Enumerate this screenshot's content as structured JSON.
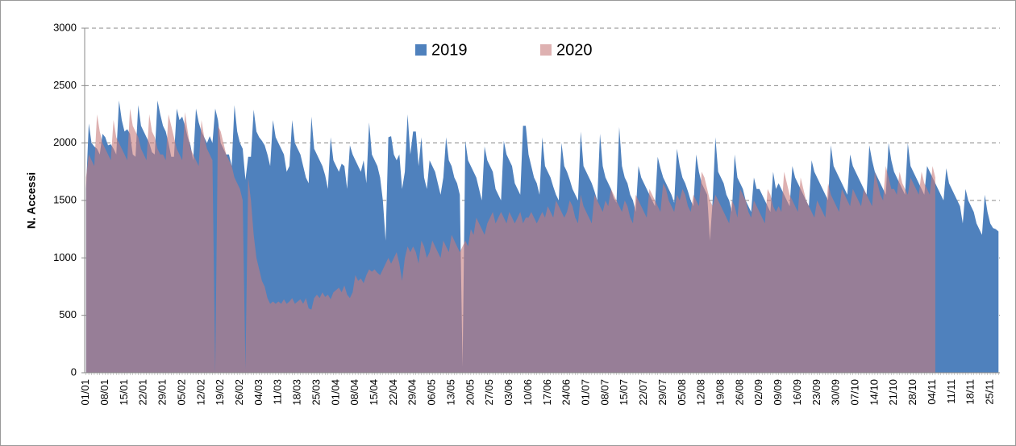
{
  "chart_data": {
    "type": "area",
    "y_label": "N. Accessi",
    "ylim": [
      0,
      3000
    ],
    "yticks": [
      0,
      500,
      1000,
      1500,
      2000,
      2500,
      3000
    ],
    "grid": true,
    "legend": "top",
    "categories": [
      "01/01",
      null,
      null,
      null,
      null,
      null,
      null,
      "08/01",
      null,
      null,
      null,
      null,
      null,
      null,
      "15/01",
      null,
      null,
      null,
      null,
      null,
      null,
      "22/01",
      null,
      null,
      null,
      null,
      null,
      null,
      "29/01",
      null,
      null,
      null,
      null,
      null,
      null,
      "05/02",
      null,
      null,
      null,
      null,
      null,
      null,
      "12/02",
      null,
      null,
      null,
      null,
      null,
      null,
      "19/02",
      null,
      null,
      null,
      null,
      null,
      null,
      "26/02",
      null,
      null,
      null,
      null,
      null,
      null,
      "04/03",
      null,
      null,
      null,
      null,
      null,
      null,
      "11/03",
      null,
      null,
      null,
      null,
      null,
      null,
      "18/03",
      null,
      null,
      null,
      null,
      null,
      null,
      "25/03",
      null,
      null,
      null,
      null,
      null,
      null,
      "01/04",
      null,
      null,
      null,
      null,
      null,
      null,
      "08/04",
      null,
      null,
      null,
      null,
      null,
      null,
      "15/04",
      null,
      null,
      null,
      null,
      null,
      null,
      "22/04",
      null,
      null,
      null,
      null,
      null,
      null,
      "29/04",
      null,
      null,
      null,
      null,
      null,
      null,
      "06/05",
      null,
      null,
      null,
      null,
      null,
      null,
      "13/05",
      null,
      null,
      null,
      null,
      null,
      null,
      "20/05",
      null,
      null,
      null,
      null,
      null,
      null,
      "27/05",
      null,
      null,
      null,
      null,
      null,
      null,
      "03/06",
      null,
      null,
      null,
      null,
      null,
      null,
      "10/06",
      null,
      null,
      null,
      null,
      null,
      null,
      "17/06",
      null,
      null,
      null,
      null,
      null,
      null,
      "24/06",
      null,
      null,
      null,
      null,
      null,
      null,
      "01/07",
      null,
      null,
      null,
      null,
      null,
      null,
      "08/07",
      null,
      null,
      null,
      null,
      null,
      null,
      "15/07",
      null,
      null,
      null,
      null,
      null,
      null,
      "22/07",
      null,
      null,
      null,
      null,
      null,
      null,
      "29/07",
      null,
      null,
      null,
      null,
      null,
      null,
      "05/08",
      null,
      null,
      null,
      null,
      null,
      null,
      "12/08",
      null,
      null,
      null,
      null,
      null,
      null,
      "19/08",
      null,
      null,
      null,
      null,
      null,
      null,
      "26/08",
      null,
      null,
      null,
      null,
      null,
      null,
      "02/09",
      null,
      null,
      null,
      null,
      null,
      null,
      "09/09",
      null,
      null,
      null,
      null,
      null,
      null,
      "16/09",
      null,
      null,
      null,
      null,
      null,
      null,
      "23/09",
      null,
      null,
      null,
      null,
      null,
      null,
      "30/09",
      null,
      null,
      null,
      null,
      null,
      null,
      "07/10",
      null,
      null,
      null,
      null,
      null,
      null,
      "14/10",
      null,
      null,
      null,
      null,
      null,
      null,
      "21/10",
      null,
      null,
      null,
      null,
      null,
      null,
      "28/10",
      null,
      null,
      null,
      null,
      null,
      null,
      "04/11",
      null,
      null,
      null,
      null,
      null,
      null,
      "11/11",
      null,
      null,
      null,
      null,
      null,
      null,
      "18/11",
      null,
      null,
      null,
      null,
      null,
      null,
      "25/11",
      null,
      null,
      null
    ],
    "series": [
      {
        "name": "2019",
        "color": "#4f81bd",
        "values": [
          1600,
          2170,
          2000,
          1970,
          1950,
          1900,
          2080,
          2050,
          1980,
          1990,
          1950,
          1900,
          2370,
          2200,
          2100,
          2120,
          2080,
          1900,
          1880,
          2330,
          2150,
          2100,
          2050,
          2000,
          1920,
          1900,
          2370,
          2250,
          2150,
          2100,
          2000,
          1880,
          1880,
          2300,
          2200,
          2230,
          2150,
          2050,
          1980,
          1850,
          2300,
          2180,
          2100,
          2050,
          2000,
          2060,
          2000,
          2300,
          2200,
          2000,
          1950,
          1900,
          1900,
          1800,
          2330,
          2100,
          2000,
          1950,
          1680,
          1880,
          1880,
          2290,
          2100,
          2050,
          2020,
          1980,
          1900,
          1800,
          2200,
          2050,
          2000,
          1950,
          1900,
          1750,
          1800,
          2200,
          2000,
          1950,
          1900,
          1800,
          1700,
          1650,
          2230,
          1950,
          1900,
          1850,
          1800,
          1720,
          1600,
          2050,
          1850,
          1800,
          1750,
          1820,
          1800,
          1600,
          1980,
          1900,
          1850,
          1800,
          1750,
          1850,
          1650,
          2180,
          1900,
          1850,
          1800,
          1700,
          1500,
          1150,
          2050,
          2060,
          1900,
          1850,
          1900,
          1600,
          1750,
          2250,
          1900,
          2100,
          2100,
          1800,
          2050,
          1700,
          1600,
          1850,
          1800,
          1750,
          1650,
          1550,
          1700,
          2050,
          1850,
          1800,
          1700,
          1650,
          1550,
          50,
          2020,
          1850,
          1800,
          1750,
          1700,
          1600,
          1500,
          1970,
          1850,
          1800,
          1750,
          1600,
          1550,
          1500,
          2020,
          1900,
          1850,
          1800,
          1650,
          1600,
          1550,
          2150,
          2150,
          1900,
          1800,
          1700,
          1650,
          1550,
          2050,
          1800,
          1750,
          1700,
          1620,
          1550,
          1500,
          2000,
          1800,
          1750,
          1680,
          1600,
          1550,
          1500,
          2100,
          1800,
          1750,
          1700,
          1650,
          1580,
          1500,
          2080,
          1800,
          1700,
          1650,
          1600,
          1520,
          1480,
          2140,
          1800,
          1700,
          1650,
          1550,
          1500,
          1400,
          1800,
          1700,
          1650,
          1600,
          1550,
          1500,
          1450,
          1880,
          1780,
          1700,
          1650,
          1600,
          1550,
          1480,
          1950,
          1800,
          1700,
          1650,
          1580,
          1500,
          1450,
          1900,
          1750,
          1650,
          1600,
          1550,
          1150,
          1500,
          2050,
          1750,
          1700,
          1650,
          1550,
          1500,
          1400,
          1900,
          1700,
          1650,
          1600,
          1500,
          1450,
          1400,
          1700,
          1600,
          1600,
          1550,
          1500,
          1450,
          1400,
          1750,
          1600,
          1650,
          1600,
          1550,
          1500,
          1450,
          1800,
          1700,
          1650,
          1600,
          1550,
          1500,
          1450,
          1850,
          1750,
          1700,
          1650,
          1600,
          1550,
          1500,
          1980,
          1800,
          1750,
          1700,
          1650,
          1600,
          1550,
          1900,
          1800,
          1750,
          1700,
          1650,
          1600,
          1550,
          1980,
          1850,
          1750,
          1700,
          1650,
          1600,
          1550,
          2000,
          1850,
          1750,
          1700,
          1650,
          1600,
          1550,
          2000,
          1800,
          1750,
          1700,
          1650,
          1600,
          1550,
          1800,
          1750,
          1700,
          1650,
          1600,
          1550,
          1500,
          1780,
          1650,
          1600,
          1550,
          1500,
          1450,
          1300,
          1600,
          1500,
          1450,
          1400,
          1300,
          1250,
          1200,
          1550,
          1400,
          1300,
          1260,
          1250,
          1230
        ]
      },
      {
        "name": "2020",
        "color": "#c87d7d",
        "values": [
          1700,
          1900,
          1850,
          1800,
          2250,
          2100,
          2000,
          1950,
          1900,
          1850,
          2200,
          2050,
          2000,
          1950,
          1900,
          1850,
          2300,
          2150,
          2100,
          2050,
          1950,
          1900,
          1850,
          2250,
          2100,
          2050,
          1950,
          1900,
          1900,
          1850,
          2250,
          2150,
          2050,
          1950,
          1900,
          1850,
          2270,
          2100,
          1950,
          1900,
          1850,
          1800,
          2200,
          2050,
          1950,
          1900,
          1850,
          0,
          2150,
          2100,
          2000,
          1900,
          1850,
          1800,
          1700,
          1650,
          1600,
          1500,
          30,
          1700,
          1500,
          1200,
          1000,
          900,
          800,
          750,
          650,
          600,
          620,
          600,
          620,
          600,
          640,
          600,
          620,
          650,
          600,
          620,
          640,
          600,
          650,
          560,
          550,
          650,
          680,
          650,
          700,
          660,
          680,
          640,
          700,
          720,
          740,
          700,
          760,
          680,
          650,
          700,
          850,
          800,
          820,
          780,
          850,
          900,
          880,
          900,
          870,
          850,
          900,
          950,
          1000,
          950,
          1000,
          1050,
          950,
          800,
          1000,
          1100,
          1050,
          1100,
          1050,
          950,
          1150,
          1100,
          1000,
          1050,
          1150,
          1100,
          1050,
          1000,
          1150,
          1100,
          1050,
          1200,
          1150,
          1100,
          1050,
          1100,
          1150,
          1100,
          1250,
          1200,
          1350,
          1300,
          1250,
          1200,
          1300,
          1350,
          1400,
          1300,
          1350,
          1400,
          1350,
          1300,
          1400,
          1350,
          1300,
          1350,
          1400,
          1300,
          1350,
          1350,
          1400,
          1350,
          1300,
          1350,
          1400,
          1350,
          1450,
          1400,
          1350,
          1500,
          1450,
          1400,
          1350,
          1400,
          1500,
          1450,
          1350,
          1300,
          1550,
          1450,
          1400,
          1350,
          1300,
          1550,
          1500,
          1450,
          1400,
          1500,
          1450,
          1600,
          1550,
          1500,
          1450,
          1400,
          1500,
          1450,
          1350,
          1300,
          1550,
          1500,
          1450,
          1400,
          1350,
          1600,
          1550,
          1500,
          1450,
          1400,
          1650,
          1600,
          1500,
          1450,
          1400,
          1550,
          1500,
          1600,
          1550,
          1450,
          1400,
          1550,
          1500,
          1450,
          1750,
          1700,
          1600,
          1500,
          1450,
          1550,
          1500,
          1450,
          1400,
          1350,
          1300,
          1500,
          1450,
          1350,
          1600,
          1550,
          1500,
          1400,
          1350,
          1500,
          1450,
          1400,
          1350,
          1300,
          1600,
          1550,
          1450,
          1400,
          1450,
          1400,
          1750,
          1650,
          1550,
          1500,
          1450,
          1400,
          1700,
          1600,
          1500,
          1450,
          1400,
          1350,
          1500,
          1450,
          1400,
          1350,
          1650,
          1550,
          1500,
          1450,
          1400,
          1600,
          1550,
          1500,
          1450,
          1600,
          1550,
          1500,
          1450,
          1600,
          1550,
          1500,
          1450,
          1750,
          1650,
          1550,
          1500,
          1800,
          1700,
          1600,
          1600,
          1550,
          1750,
          1650,
          1600,
          1550,
          1700,
          1650,
          1600,
          1550,
          1750,
          1650,
          1600,
          1550,
          1800,
          1700,
          null,
          null,
          null,
          null,
          null,
          null,
          null,
          null,
          null,
          null,
          null,
          null,
          null,
          null,
          null,
          null,
          null,
          null,
          null,
          null,
          null,
          null,
          null
        ]
      }
    ]
  }
}
